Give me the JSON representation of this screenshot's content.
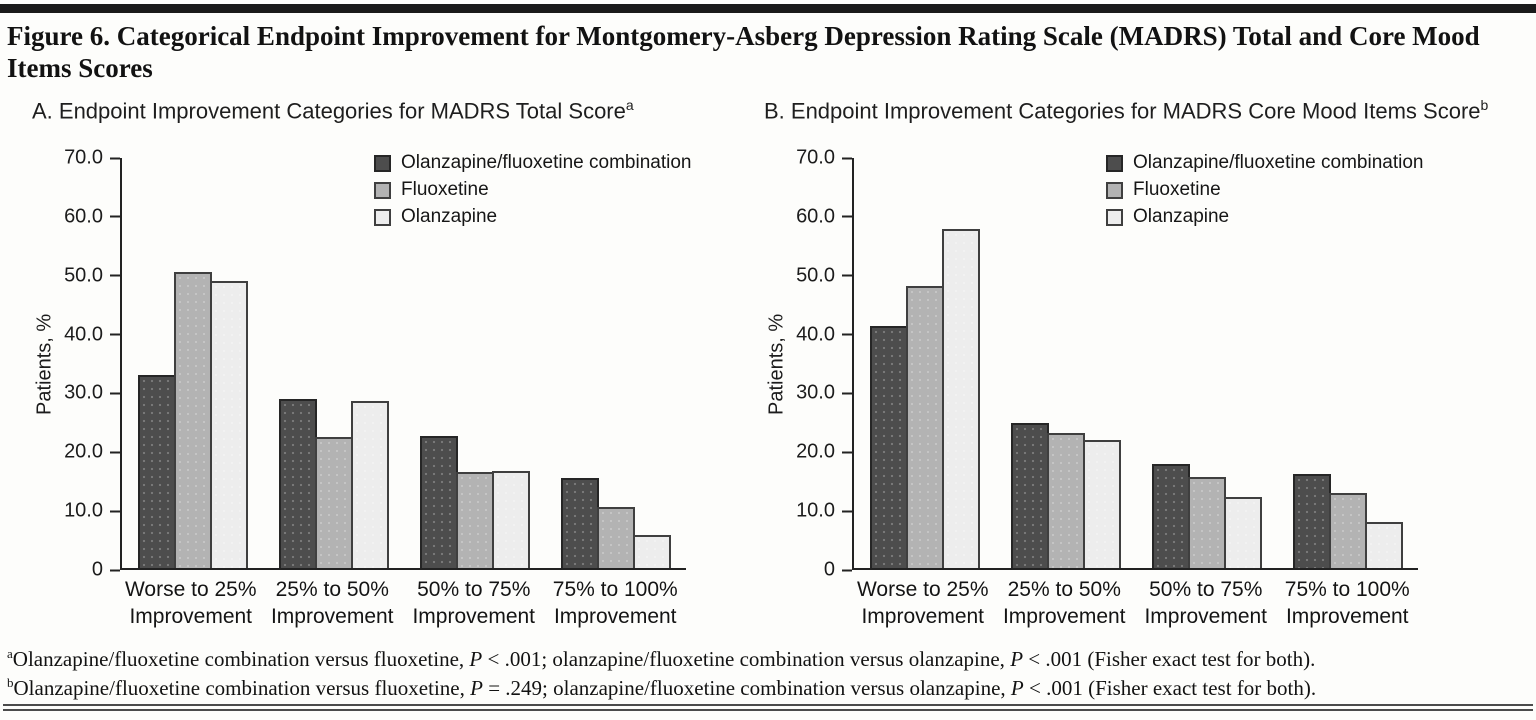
{
  "figure": {
    "title": "Figure 6. Categorical Endpoint Improvement for Montgomery-Asberg Depression Rating Scale (MADRS) Total and Core Mood Items Scores"
  },
  "colors": {
    "bar_dark": "#4d4d4d",
    "bar_medium": "#b3b3b3",
    "bar_light": "#ededed",
    "bar_border": "#313131",
    "axis": "#222222",
    "top_rule": "#1a1a1a",
    "bottom_rule": "#4b4b4b"
  },
  "chart_data": [
    {
      "type": "bar",
      "panel_label": "A. Endpoint Improvement Categories for MADRS Total Score",
      "panel_superscript": "a",
      "ylabel": "Patients, %",
      "ylim": [
        0,
        70
      ],
      "yticks": [
        "70.0",
        "60.0",
        "50.0",
        "40.0",
        "30.0",
        "20.0",
        "10.0",
        "0"
      ],
      "grid": false,
      "legend_position": "inside-top-right",
      "categories": [
        "Worse to 25%",
        "25% to 50%",
        "50% to 75%",
        "75% to 100%"
      ],
      "category_line2": "Improvement",
      "series": [
        {
          "name": "Olanzapine/fluoxetine combination",
          "color": "#4d4d4d",
          "border": "#262626",
          "values": [
            33.0,
            28.8,
            22.5,
            15.4
          ]
        },
        {
          "name": "Fluoxetine",
          "color": "#b3b3b3",
          "border": "#3f3f3f",
          "values": [
            50.6,
            22.4,
            16.4,
            10.4
          ]
        },
        {
          "name": "Olanzapine",
          "color": "#ededed",
          "border": "#3f3f3f",
          "values": [
            49.0,
            28.6,
            16.6,
            5.6
          ]
        }
      ]
    },
    {
      "type": "bar",
      "panel_label": "B. Endpoint Improvement Categories for MADRS Core Mood Items Score",
      "panel_superscript": "b",
      "ylabel": "Patients, %",
      "ylim": [
        0,
        70
      ],
      "yticks": [
        "70.0",
        "60.0",
        "50.0",
        "40.0",
        "30.0",
        "20.0",
        "10.0",
        "0"
      ],
      "grid": false,
      "legend_position": "inside-top-right",
      "categories": [
        "Worse to 25%",
        "25% to 50%",
        "50% to 75%",
        "75% to 100%"
      ],
      "category_line2": "Improvement",
      "series": [
        {
          "name": "Olanzapine/fluoxetine combination",
          "color": "#4d4d4d",
          "border": "#262626",
          "values": [
            41.4,
            24.8,
            17.7,
            16.0
          ]
        },
        {
          "name": "Fluoxetine",
          "color": "#b3b3b3",
          "border": "#3f3f3f",
          "values": [
            48.2,
            23.0,
            15.6,
            12.8
          ]
        },
        {
          "name": "Olanzapine",
          "color": "#ededed",
          "border": "#3f3f3f",
          "values": [
            57.9,
            21.8,
            12.1,
            7.8
          ]
        }
      ]
    }
  ],
  "footnotes": [
    {
      "marker": "a",
      "segments": [
        {
          "text": "Olanzapine/fluoxetine combination versus fluoxetine, "
        },
        {
          "text": "P",
          "italic": true
        },
        {
          "text": " < .001; olanzapine/fluoxetine combination versus olanzapine, "
        },
        {
          "text": "P",
          "italic": true
        },
        {
          "text": " < .001 (Fisher exact test for both)."
        }
      ]
    },
    {
      "marker": "b",
      "segments": [
        {
          "text": "Olanzapine/fluoxetine combination versus fluoxetine, "
        },
        {
          "text": "P",
          "italic": true
        },
        {
          "text": " = .249; olanzapine/fluoxetine combination versus olanzapine, "
        },
        {
          "text": "P",
          "italic": true
        },
        {
          "text": " < .001 (Fisher exact test for both)."
        }
      ]
    }
  ]
}
